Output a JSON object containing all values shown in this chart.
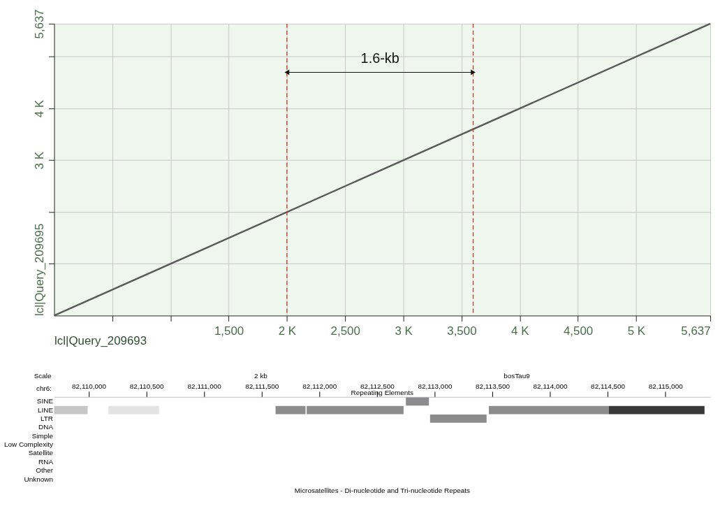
{
  "chart_data": [
    {
      "type": "line",
      "xlabel": "lcl|Query_209693",
      "ylabel": "lcl|Query_209695",
      "series": [
        {
          "color": "#5a5a5a",
          "x": [
            0,
            5637
          ],
          "values": [
            0,
            5637
          ]
        }
      ],
      "xlim": [
        0,
        5637
      ],
      "ylim": [
        0,
        5637
      ],
      "xticks": [
        {
          "value": 500,
          "label": null
        },
        {
          "value": 1000,
          "label": null
        },
        {
          "value": 1500,
          "label": "1,500"
        },
        {
          "value": 2000,
          "label": "2 K"
        },
        {
          "value": 2500,
          "label": "2,500"
        },
        {
          "value": 3000,
          "label": "3 K"
        },
        {
          "value": 3500,
          "label": "3,500"
        },
        {
          "value": 4000,
          "label": "4 K"
        },
        {
          "value": 4500,
          "label": "4,500"
        },
        {
          "value": 5000,
          "label": "5 K"
        },
        {
          "value": 5637,
          "label": "5,637"
        }
      ],
      "yticks": [
        {
          "value": 1000,
          "label": null
        },
        {
          "value": 2000,
          "label": null
        },
        {
          "value": 3000,
          "label": "3 K"
        },
        {
          "value": 4000,
          "label": "4 K"
        },
        {
          "value": 5000,
          "label": null
        },
        {
          "value": 5637,
          "label": "5,637"
        }
      ],
      "ref_lines": [
        {
          "axis": "x",
          "value": 2000,
          "color": "#c0392b",
          "line_style": "dashed"
        },
        {
          "axis": "x",
          "value": 3600,
          "color": "#c0392b",
          "line_style": "dashed"
        }
      ],
      "annotations": [
        "1.6-kb"
      ],
      "grid": true,
      "marker": "none",
      "line_style": "solid"
    },
    {
      "type": "bar",
      "orientation": "horizontal",
      "title": "Repeating Elements",
      "xlabel": "chr6:",
      "categories": [
        "SINE",
        "LINE",
        "LTR",
        "DNA",
        "Simple",
        "Low Complexity",
        "Satellite",
        "RNA",
        "Other",
        "Unknown"
      ],
      "series": [
        {
          "color": "#c6c6c6",
          "values": [
            null,
            290,
            null,
            null,
            null,
            null,
            null,
            null,
            null,
            null
          ],
          "base": [
            null,
            82109700,
            null,
            null,
            null,
            null,
            null,
            null,
            null,
            null
          ]
        },
        {
          "color": "#e3e3e3",
          "values": [
            null,
            440,
            null,
            null,
            null,
            null,
            null,
            null,
            null,
            null
          ],
          "base": [
            null,
            82110170,
            null,
            null,
            null,
            null,
            null,
            null,
            null,
            null
          ]
        },
        {
          "color": "#8c8c8c",
          "values": [
            null,
            260,
            null,
            null,
            null,
            null,
            null,
            null,
            null,
            null
          ],
          "base": [
            null,
            82111620,
            null,
            null,
            null,
            null,
            null,
            null,
            null,
            null
          ]
        },
        {
          "color": "#8c8c8c",
          "values": [
            null,
            840,
            null,
            null,
            null,
            null,
            null,
            null,
            null,
            null
          ],
          "base": [
            null,
            82111890,
            null,
            null,
            null,
            null,
            null,
            null,
            null,
            null
          ]
        },
        {
          "color": "#8c8c8c",
          "values": [
            200,
            null,
            null,
            null,
            null,
            null,
            null,
            null,
            null,
            null
          ],
          "base": [
            82112750,
            null,
            null,
            null,
            null,
            null,
            null,
            null,
            null,
            null
          ]
        },
        {
          "color": "#8c8c8c",
          "values": [
            null,
            null,
            490,
            null,
            null,
            null,
            null,
            null,
            null,
            null
          ],
          "base": [
            null,
            null,
            82112960,
            null,
            null,
            null,
            null,
            null,
            null,
            null
          ]
        },
        {
          "color": "#8c8c8c",
          "values": [
            null,
            1040,
            null,
            null,
            null,
            null,
            null,
            null,
            null,
            null
          ],
          "base": [
            null,
            82113470,
            null,
            null,
            null,
            null,
            null,
            null,
            null,
            null
          ]
        },
        {
          "color": "#383838",
          "values": [
            null,
            830,
            null,
            null,
            null,
            null,
            null,
            null,
            null,
            null
          ],
          "base": [
            null,
            82114510,
            null,
            null,
            null,
            null,
            null,
            null,
            null,
            null
          ]
        }
      ],
      "xlim": [
        82109700,
        82115390
      ],
      "xticks": [
        {
          "value": 82110000,
          "label": "82,110,000"
        },
        {
          "value": 82110500,
          "label": "82,110,500"
        },
        {
          "value": 82111000,
          "label": "82,111,000"
        },
        {
          "value": 82111500,
          "label": "82,111,500"
        },
        {
          "value": 82112000,
          "label": "82,112,000"
        },
        {
          "value": 82112500,
          "label": "82,112,500"
        },
        {
          "value": 82113000,
          "label": "82,113,000"
        },
        {
          "value": 82113500,
          "label": "82,113,500"
        },
        {
          "value": 82114000,
          "label": "82,114,000"
        },
        {
          "value": 82114500,
          "label": "82,114,500"
        },
        {
          "value": 82115000,
          "label": "82,115,000"
        }
      ],
      "annotations": [
        "Scale",
        "2 kb",
        "bosTau9",
        "Microsatellites - Di-nucleotide and Tri-nucleotide Repeats"
      ],
      "grid": false,
      "legend": false
    }
  ]
}
